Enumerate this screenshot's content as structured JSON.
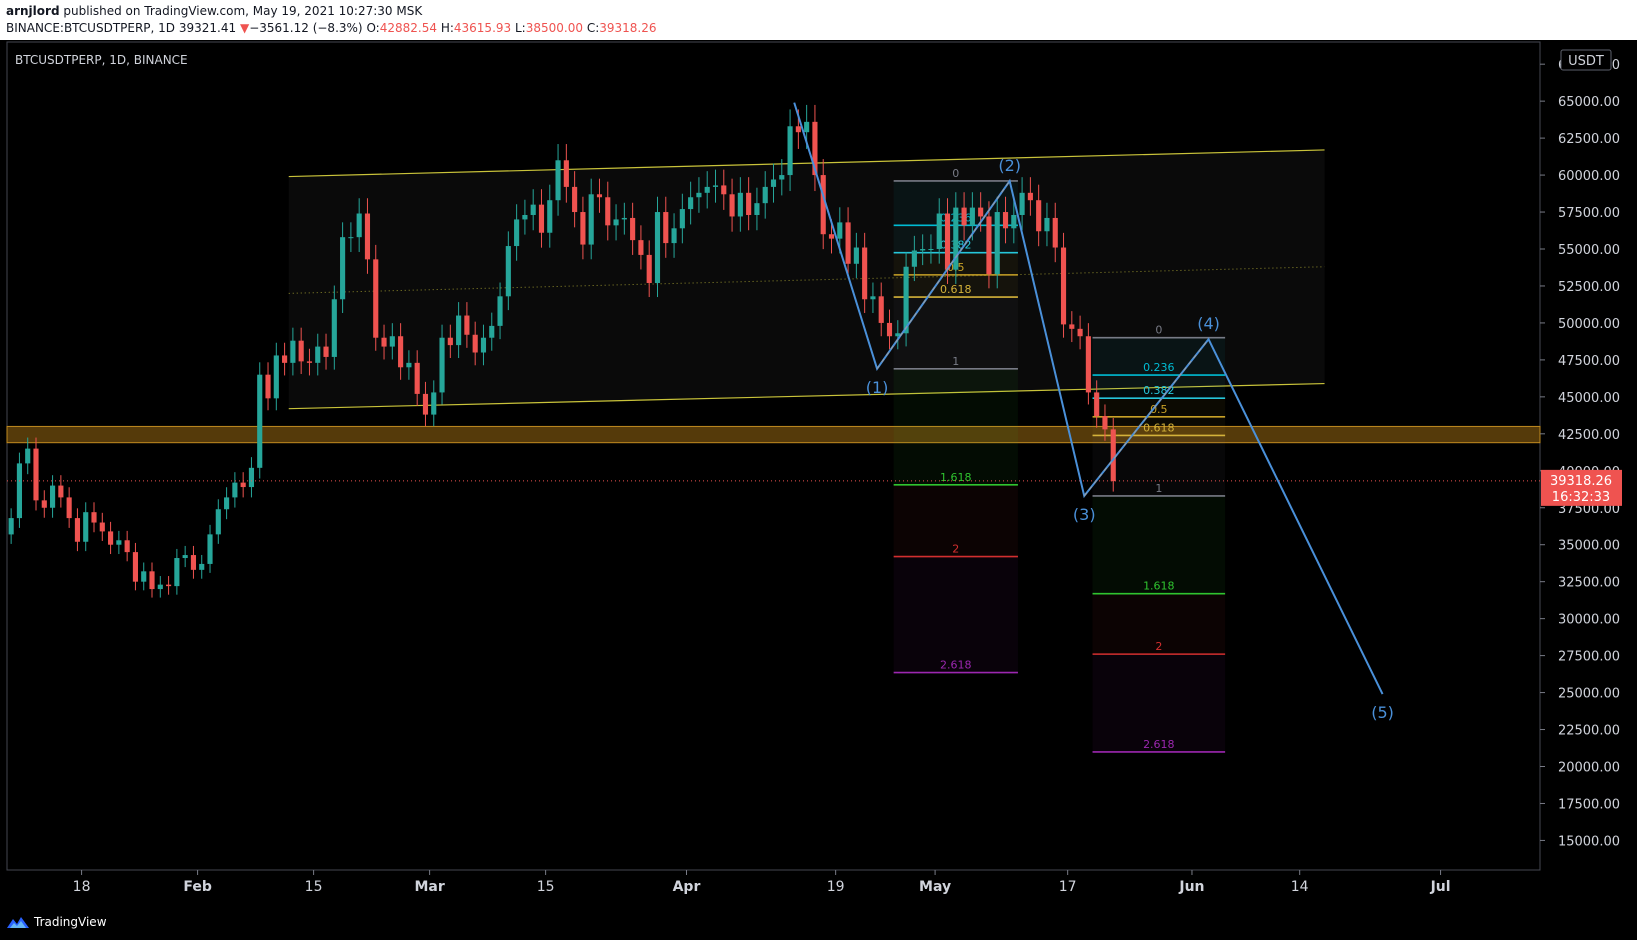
{
  "header": {
    "author": "arnjlord",
    "published_text": " published on TradingView.com, May 19, 2021 10:27:30 MSK",
    "symbol": "BINANCE:BTCUSDTPERP, 1D",
    "last_price": "39321.41",
    "arrow": "▼",
    "change": "−3561.12 (−8.3%)",
    "open_label": "O:",
    "open": "42882.54",
    "high_label": "H:",
    "high": "43615.93",
    "low_label": "L:",
    "low": "38500.00",
    "close_label": "C:",
    "close": "39318.26"
  },
  "footer": {
    "brand": "TradingView",
    "brand_icon": "tradingview-logo-icon"
  },
  "colors": {
    "up": "#26a69a",
    "down": "#ef5350",
    "channel": "#c9c33a",
    "wave": "#4a90d9",
    "zone": "#9a6a12",
    "price_badge": "#ef5350"
  },
  "chart_data": {
    "type": "candlestick",
    "title": "BTCUSDTPERP, 1D, BINANCE",
    "currency_label": "USDT",
    "current_price_label": "39318.26",
    "countdown_label": "16:32:33",
    "current_price": 39318.26,
    "ylim": [
      13000,
      69000
    ],
    "y_ticks": [
      "67500.00",
      "65000.00",
      "62500.00",
      "60000.00",
      "57500.00",
      "55000.00",
      "52500.00",
      "50000.00",
      "47500.00",
      "45000.00",
      "42500.00",
      "40000.00",
      "37500.00",
      "35000.00",
      "32500.00",
      "30000.00",
      "27500.00",
      "25000.00",
      "22500.00",
      "20000.00",
      "17500.00",
      "15000.00"
    ],
    "y_tick_values": [
      67500,
      65000,
      62500,
      60000,
      57500,
      55000,
      52500,
      50000,
      47500,
      45000,
      42500,
      40000,
      37500,
      35000,
      32500,
      30000,
      27500,
      25000,
      22500,
      20000,
      17500,
      15000
    ],
    "x_range": [
      "2021-01-09",
      "2021-07-13"
    ],
    "x_ticks": [
      {
        "label": "18",
        "date": "2021-01-18"
      },
      {
        "label": "Feb",
        "date": "2021-02-01"
      },
      {
        "label": "15",
        "date": "2021-02-15"
      },
      {
        "label": "Mar",
        "date": "2021-03-01"
      },
      {
        "label": "15",
        "date": "2021-03-15"
      },
      {
        "label": "Apr",
        "date": "2021-04-01"
      },
      {
        "label": "19",
        "date": "2021-04-19"
      },
      {
        "label": "May",
        "date": "2021-05-01"
      },
      {
        "label": "17",
        "date": "2021-05-17"
      },
      {
        "label": "Jun",
        "date": "2021-06-01"
      },
      {
        "label": "14",
        "date": "2021-06-14"
      },
      {
        "label": "Jul",
        "date": "2021-07-01"
      }
    ],
    "closes": [
      36800,
      40500,
      41500,
      38000,
      37500,
      39000,
      38200,
      36800,
      35200,
      37200,
      36500,
      35900,
      35000,
      35300,
      34500,
      32500,
      33200,
      32000,
      32300,
      32200,
      34100,
      34300,
      33300,
      33700,
      35700,
      37400,
      38200,
      39200,
      38900,
      40200,
      46500,
      44900,
      47800,
      47300,
      48800,
      47400,
      47300,
      48400,
      47700,
      51600,
      55800,
      55800,
      57400,
      54300,
      49000,
      48400,
      49100,
      47000,
      47300,
      45200,
      43800,
      45300,
      49000,
      48500,
      50500,
      49200,
      48000,
      49000,
      49800,
      51800,
      55200,
      57000,
      57300,
      58000,
      56100,
      58300,
      61000,
      59200,
      57500,
      55300,
      58700,
      58500,
      56600,
      57000,
      57100,
      55600,
      54600,
      52700,
      57500,
      55400,
      56400,
      57700,
      58500,
      58800,
      59200,
      59300,
      58700,
      57200,
      58800,
      57300,
      58100,
      59200,
      59700,
      60000,
      63300,
      62900,
      63600,
      60000,
      56000,
      55700,
      56800,
      54000,
      55100,
      51600,
      51800,
      50000,
      49100,
      49300,
      53800,
      54900,
      55000,
      55000,
      57400,
      53600,
      57800,
      56600,
      57800,
      57200,
      53300,
      57500,
      56400,
      57300,
      58800,
      58300,
      56200,
      57100,
      55100,
      49900,
      49600,
      49100,
      45300,
      43700,
      42800,
      39300
    ],
    "channel": {
      "lower": [
        {
          "date": "2021-02-12",
          "price": 44200
        },
        {
          "date": "2021-06-17",
          "price": 45900
        }
      ],
      "upper": [
        {
          "date": "2021-02-12",
          "price": 59900
        },
        {
          "date": "2021-06-17",
          "price": 61700
        }
      ],
      "mid": [
        {
          "date": "2021-02-12",
          "price": 52000
        },
        {
          "date": "2021-06-17",
          "price": 53800
        }
      ]
    },
    "support_zone": [
      41900,
      43000
    ],
    "waves": [
      {
        "label": "(1)",
        "date": "2021-04-24",
        "price": 46900
      },
      {
        "label": "(2)",
        "date": "2021-05-10",
        "price": 59600
      },
      {
        "label": "(3)",
        "date": "2021-05-19",
        "price": 38300
      },
      {
        "label": "(4)",
        "date": "2021-06-03",
        "price": 48900
      },
      {
        "label": "(5)",
        "date": "2021-06-24",
        "price": 24900
      }
    ],
    "wave_start": {
      "date": "2021-04-14",
      "price": 64900
    },
    "fib_levels": [
      {
        "ratio": "0",
        "color": "#787b86"
      },
      {
        "ratio": "0.236",
        "color": "#00bcd4"
      },
      {
        "ratio": "0.382",
        "color": "#26c6da"
      },
      {
        "ratio": "0.5",
        "color": "#c9a227"
      },
      {
        "ratio": "0.618",
        "color": "#d4b23a"
      },
      {
        "ratio": "1",
        "color": "#787b86"
      },
      {
        "ratio": "1.618",
        "color": "#2fc42f"
      },
      {
        "ratio": "2",
        "color": "#d32f2f"
      },
      {
        "ratio": "2.618",
        "color": "#9c27b0"
      }
    ],
    "fib_sets": [
      {
        "date_from": "2021-04-26",
        "date_to": "2021-05-11",
        "p0": 59600,
        "p1": 46900
      },
      {
        "date_from": "2021-05-20",
        "date_to": "2021-06-05",
        "p0": 49000,
        "p1": 38300
      }
    ]
  }
}
